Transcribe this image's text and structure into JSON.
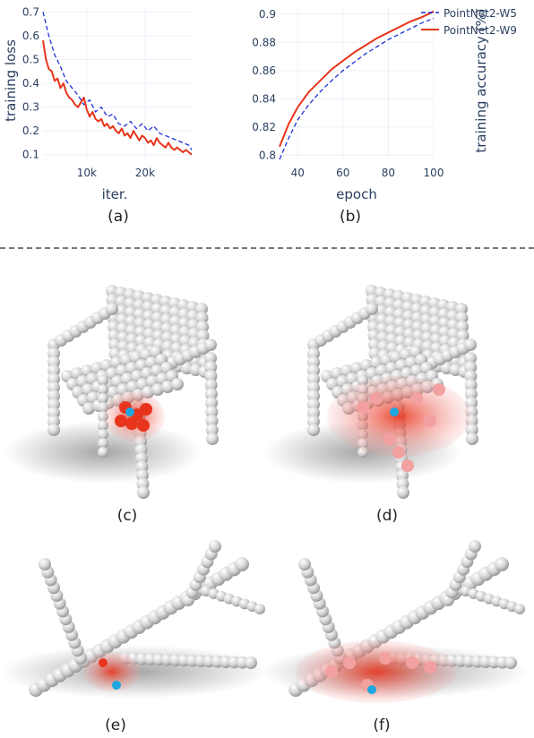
{
  "chart_data": [
    {
      "type": "line",
      "title": "",
      "xlabel": "iter.",
      "ylabel": "training loss",
      "xlim": [
        2500,
        28000
      ],
      "ylim": [
        0.08,
        0.72
      ],
      "xticks": [
        10000,
        20000
      ],
      "xtick_labels": [
        "10k",
        "20k"
      ],
      "yticks": [
        0.1,
        0.2,
        0.3,
        0.4,
        0.5,
        0.6,
        0.7
      ],
      "ytick_labels": [
        "0.1",
        "0.2",
        "0.3",
        "0.4",
        "0.5",
        "0.6",
        "0.7"
      ],
      "grid": true,
      "series": [
        {
          "name": "PointNet2-W5",
          "style": "dashed",
          "color": "#1f2fd6",
          "x": [
            2500,
            3500,
            4500,
            5500,
            6500,
            7500,
            8500,
            9500,
            10500,
            11500,
            12500,
            13500,
            14500,
            15500,
            16500,
            17500,
            18500,
            19500,
            20500,
            21500,
            22500,
            23500,
            24500,
            25500,
            26500,
            27500,
            28000
          ],
          "y": [
            0.7,
            0.6,
            0.52,
            0.47,
            0.41,
            0.38,
            0.35,
            0.31,
            0.33,
            0.28,
            0.3,
            0.26,
            0.27,
            0.23,
            0.22,
            0.24,
            0.21,
            0.23,
            0.2,
            0.22,
            0.19,
            0.18,
            0.17,
            0.16,
            0.15,
            0.14,
            0.12
          ]
        },
        {
          "name": "PointNet2-W9",
          "style": "solid",
          "color": "#e8341c",
          "x": [
            2500,
            3000,
            3500,
            4000,
            4500,
            5000,
            5500,
            6000,
            6500,
            7000,
            7500,
            8000,
            8500,
            9000,
            9500,
            10000,
            10500,
            11000,
            11500,
            12000,
            12500,
            13000,
            13500,
            14000,
            14500,
            15000,
            15500,
            16000,
            16500,
            17000,
            17500,
            18000,
            18500,
            19000,
            19500,
            20000,
            20500,
            21000,
            21500,
            22000,
            22500,
            23000,
            23500,
            24000,
            24500,
            25000,
            25500,
            26000,
            26500,
            27000,
            27500,
            28000
          ],
          "y": [
            0.58,
            0.5,
            0.46,
            0.45,
            0.41,
            0.42,
            0.38,
            0.4,
            0.36,
            0.34,
            0.33,
            0.31,
            0.3,
            0.32,
            0.34,
            0.29,
            0.26,
            0.28,
            0.25,
            0.24,
            0.25,
            0.22,
            0.23,
            0.21,
            0.22,
            0.2,
            0.19,
            0.21,
            0.18,
            0.19,
            0.17,
            0.2,
            0.18,
            0.16,
            0.18,
            0.17,
            0.15,
            0.16,
            0.14,
            0.17,
            0.15,
            0.14,
            0.13,
            0.15,
            0.13,
            0.12,
            0.13,
            0.12,
            0.11,
            0.12,
            0.11,
            0.1
          ]
        }
      ]
    },
    {
      "type": "line",
      "title": "",
      "xlabel": "epoch",
      "ylabel": "training accuracy (%)",
      "xlim": [
        32,
        100
      ],
      "ylim": [
        0.797,
        0.905
      ],
      "xticks": [
        40,
        60,
        80,
        100
      ],
      "xtick_labels": [
        "40",
        "60",
        "80",
        "100"
      ],
      "yticks": [
        0.8,
        0.82,
        0.84,
        0.86,
        0.88,
        0.9
      ],
      "ytick_labels": [
        "0.8",
        "0.82",
        "0.84",
        "0.86",
        "0.88",
        "0.9"
      ],
      "grid": true,
      "legend": "top-right",
      "series": [
        {
          "name": "PointNet2-W5",
          "style": "dashed",
          "color": "#1f2fd6",
          "x": [
            32,
            36,
            40,
            45,
            50,
            55,
            60,
            65,
            70,
            75,
            80,
            85,
            90,
            95,
            100
          ],
          "y": [
            0.797,
            0.812,
            0.825,
            0.836,
            0.845,
            0.853,
            0.86,
            0.866,
            0.872,
            0.877,
            0.882,
            0.886,
            0.89,
            0.894,
            0.897
          ]
        },
        {
          "name": "PointNet2-W9",
          "style": "solid",
          "color": "#e8341c",
          "x": [
            32,
            36,
            40,
            45,
            50,
            55,
            60,
            65,
            70,
            75,
            80,
            85,
            90,
            95,
            100
          ],
          "y": [
            0.806,
            0.822,
            0.834,
            0.845,
            0.853,
            0.861,
            0.867,
            0.873,
            0.878,
            0.883,
            0.887,
            0.891,
            0.895,
            0.898,
            0.902
          ]
        }
      ]
    }
  ],
  "captions": {
    "a": "(a)",
    "b": "(b)",
    "c": "(c)",
    "d": "(d)",
    "e": "(e)",
    "f": "(f)"
  },
  "colors": {
    "sphere": "#d2d2d2",
    "highlight": "#e8341c",
    "anchor": "#1ea7e0"
  }
}
